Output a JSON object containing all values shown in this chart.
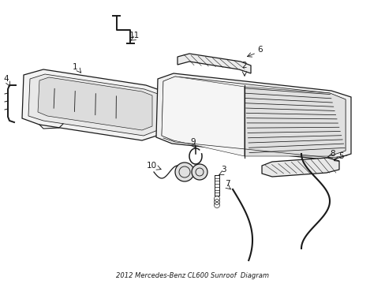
{
  "title": "2012 Mercedes-Benz CL600 Sunroof  Diagram",
  "bg": "#ffffff",
  "lc": "#1a1a1a",
  "fig_w": 4.89,
  "fig_h": 3.6,
  "dpi": 100
}
